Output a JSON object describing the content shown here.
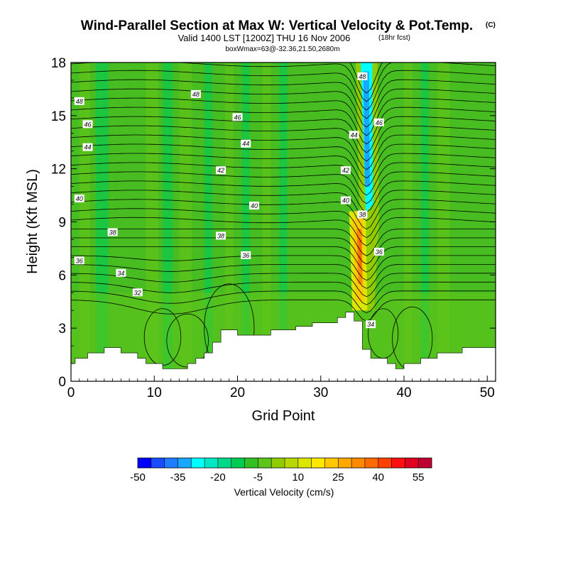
{
  "chart_data": {
    "type": "heatmap",
    "title": "Wind-Parallel Section at Max W: Vertical Velocity & Pot.Temp.",
    "title_tag": "(C)",
    "subtitle": "Valid 1400 LST [1200Z] THU 16 Nov 2006",
    "subtitle_tag": "(18hr fcst)",
    "subtitle2": "boxWmax=63@-32.36,21.50,2680m",
    "xlabel": "Grid Point",
    "ylabel": "Height (Kft MSL)",
    "xlim": [
      0,
      51
    ],
    "ylim": [
      0,
      18
    ],
    "xticks": [
      0,
      10,
      20,
      30,
      40,
      50
    ],
    "yticks": [
      0,
      3,
      6,
      9,
      12,
      15,
      18
    ],
    "terrain": [
      [
        0,
        1.0
      ],
      [
        0.5,
        1.0
      ],
      [
        0.5,
        1.3
      ],
      [
        2,
        1.3
      ],
      [
        2,
        1.6
      ],
      [
        4,
        1.6
      ],
      [
        4,
        1.9
      ],
      [
        6,
        1.9
      ],
      [
        6,
        1.6
      ],
      [
        8,
        1.6
      ],
      [
        8,
        1.3
      ],
      [
        9,
        1.3
      ],
      [
        9,
        1.0
      ],
      [
        11,
        1.0
      ],
      [
        11,
        0.7
      ],
      [
        14,
        0.7
      ],
      [
        14,
        1.0
      ],
      [
        15,
        1.0
      ],
      [
        15,
        1.3
      ],
      [
        16,
        1.3
      ],
      [
        16,
        1.6
      ],
      [
        17,
        1.6
      ],
      [
        17,
        2.2
      ],
      [
        18,
        2.2
      ],
      [
        18,
        2.9
      ],
      [
        20,
        2.9
      ],
      [
        20,
        2.6
      ],
      [
        24,
        2.6
      ],
      [
        24,
        2.9
      ],
      [
        27,
        2.9
      ],
      [
        27,
        3.1
      ],
      [
        29,
        3.1
      ],
      [
        29,
        3.3
      ],
      [
        32,
        3.3
      ],
      [
        32,
        3.6
      ],
      [
        33,
        3.6
      ],
      [
        33,
        3.9
      ],
      [
        34,
        3.9
      ],
      [
        34,
        3.4
      ],
      [
        35,
        3.4
      ],
      [
        35,
        1.8
      ],
      [
        36,
        1.8
      ],
      [
        36,
        1.3
      ],
      [
        38,
        1.3
      ],
      [
        38,
        1.0
      ],
      [
        39,
        1.0
      ],
      [
        39,
        0.7
      ],
      [
        40,
        0.7
      ],
      [
        40,
        1.0
      ],
      [
        42,
        1.0
      ],
      [
        42,
        1.3
      ],
      [
        44,
        1.3
      ],
      [
        44,
        1.6
      ],
      [
        47,
        1.6
      ],
      [
        47,
        1.9
      ],
      [
        51,
        1.9
      ]
    ],
    "theta_labels": [
      {
        "text": "48",
        "x": 1,
        "y": 15.8
      },
      {
        "text": "46",
        "x": 2,
        "y": 14.5
      },
      {
        "text": "44",
        "x": 2,
        "y": 13.2
      },
      {
        "text": "40",
        "x": 1,
        "y": 10.3
      },
      {
        "text": "38",
        "x": 5,
        "y": 8.4
      },
      {
        "text": "36",
        "x": 1,
        "y": 6.8
      },
      {
        "text": "34",
        "x": 6,
        "y": 6.1
      },
      {
        "text": "32",
        "x": 8,
        "y": 5.0
      },
      {
        "text": "48",
        "x": 15,
        "y": 16.2
      },
      {
        "text": "46",
        "x": 20,
        "y": 14.9
      },
      {
        "text": "44",
        "x": 21,
        "y": 13.4
      },
      {
        "text": "42",
        "x": 18,
        "y": 11.9
      },
      {
        "text": "40",
        "x": 22,
        "y": 9.9
      },
      {
        "text": "38",
        "x": 18,
        "y": 8.2
      },
      {
        "text": "36",
        "x": 21,
        "y": 7.1
      },
      {
        "text": "48",
        "x": 35,
        "y": 17.2
      },
      {
        "text": "46",
        "x": 37,
        "y": 14.6
      },
      {
        "text": "44",
        "x": 34,
        "y": 13.9
      },
      {
        "text": "42",
        "x": 33,
        "y": 11.9
      },
      {
        "text": "40",
        "x": 33,
        "y": 10.2
      },
      {
        "text": "38",
        "x": 35,
        "y": 9.4
      },
      {
        "text": "36",
        "x": 37,
        "y": 7.3
      },
      {
        "text": "34",
        "x": 36,
        "y": 3.2
      }
    ],
    "colorbar": {
      "label": "Vertical Velocity (cm/s)",
      "ticks": [
        -50,
        -35,
        -20,
        -5,
        10,
        25,
        40,
        55
      ],
      "min": -50,
      "step": 5,
      "colors": [
        "#0000ff",
        "#1a4cff",
        "#1f7bff",
        "#18a8ff",
        "#00ffff",
        "#00e8c4",
        "#00d88a",
        "#00cc55",
        "#30c022",
        "#5ec41a",
        "#90cc00",
        "#b8d800",
        "#dce600",
        "#ffe800",
        "#ffc800",
        "#ffa800",
        "#ff8a00",
        "#ff6a00",
        "#ff4000",
        "#ff1010",
        "#e00020",
        "#c00030"
      ]
    }
  }
}
